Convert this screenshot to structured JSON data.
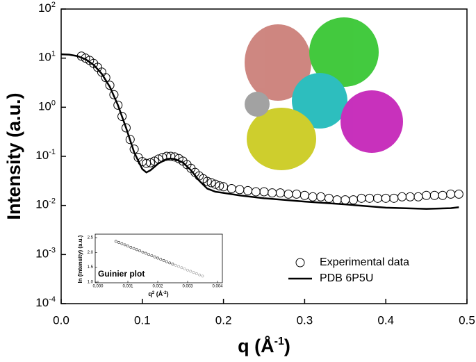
{
  "chart_data": [
    {
      "type": "line",
      "ylabel": "Intensity (a.u.)",
      "xlabel": {
        "text": "q (Å",
        "power": "-1",
        "end": ")"
      },
      "xlim": [
        0,
        0.5
      ],
      "xticks": [
        {
          "value": 0,
          "label": "0.0"
        },
        0.1,
        0.2,
        0.3,
        0.4,
        0.5
      ],
      "ylim": [
        0.0001,
        100
      ],
      "log_y": true,
      "yticks": [
        {
          "value": 0.0001,
          "label": "10",
          "power": "-4"
        },
        {
          "value": 0.001,
          "label": "10",
          "power": "-3"
        },
        {
          "value": 0.01,
          "label": "10",
          "power": "-2"
        },
        {
          "value": 0.1,
          "label": "10",
          "power": "-1"
        },
        {
          "value": 1,
          "label": "10",
          "power": "0"
        },
        {
          "value": 10,
          "label": "10",
          "power": "1"
        },
        {
          "value": 100,
          "label": "10",
          "power": "2"
        }
      ],
      "legend": "lower right",
      "series": [
        {
          "name": "Experimental data",
          "mode": "markers",
          "color": "#000000",
          "x": [
            0.025,
            0.03,
            0.035,
            0.04,
            0.045,
            0.05,
            0.055,
            0.06,
            0.065,
            0.07,
            0.075,
            0.08,
            0.085,
            0.09,
            0.095,
            0.1,
            0.105,
            0.11,
            0.115,
            0.12,
            0.125,
            0.13,
            0.135,
            0.14,
            0.145,
            0.15,
            0.155,
            0.16,
            0.165,
            0.17,
            0.175,
            0.18,
            0.185,
            0.19,
            0.195,
            0.2,
            0.21,
            0.22,
            0.23,
            0.24,
            0.25,
            0.26,
            0.27,
            0.28,
            0.29,
            0.3,
            0.31,
            0.32,
            0.33,
            0.34,
            0.35,
            0.36,
            0.37,
            0.38,
            0.39,
            0.4,
            0.41,
            0.42,
            0.43,
            0.44,
            0.45,
            0.46,
            0.47,
            0.48,
            0.49
          ],
          "values": [
            11,
            10,
            9,
            7.8,
            6.5,
            5.2,
            4,
            2.8,
            1.8,
            1.1,
            0.65,
            0.38,
            0.22,
            0.14,
            0.095,
            0.078,
            0.072,
            0.074,
            0.08,
            0.088,
            0.095,
            0.1,
            0.1,
            0.097,
            0.09,
            0.08,
            0.068,
            0.057,
            0.047,
            0.04,
            0.035,
            0.031,
            0.029,
            0.027,
            0.025,
            0.024,
            0.022,
            0.021,
            0.02,
            0.019,
            0.019,
            0.018,
            0.018,
            0.017,
            0.017,
            0.016,
            0.015,
            0.015,
            0.014,
            0.013,
            0.013,
            0.013,
            0.014,
            0.014,
            0.014,
            0.014,
            0.014,
            0.015,
            0.015,
            0.015,
            0.016,
            0.016,
            0.016,
            0.017,
            0.017
          ]
        },
        {
          "name": "PDB 6P5U",
          "mode": "lines",
          "color": "#000000",
          "x": [
            0,
            0.01,
            0.02,
            0.03,
            0.04,
            0.05,
            0.06,
            0.07,
            0.08,
            0.09,
            0.1,
            0.105,
            0.11,
            0.12,
            0.13,
            0.135,
            0.14,
            0.15,
            0.16,
            0.17,
            0.18,
            0.19,
            0.2,
            0.22,
            0.25,
            0.3,
            0.35,
            0.4,
            0.45,
            0.48,
            0.49
          ],
          "values": [
            12,
            11.8,
            11,
            9.5,
            7.3,
            4.8,
            2.6,
            1.1,
            0.38,
            0.12,
            0.055,
            0.047,
            0.052,
            0.072,
            0.088,
            0.09,
            0.088,
            0.075,
            0.052,
            0.032,
            0.022,
            0.019,
            0.018,
            0.016,
            0.014,
            0.012,
            0.0105,
            0.009,
            0.0085,
            0.0088,
            0.0092
          ]
        }
      ]
    },
    {
      "type": "scatter",
      "annotation": "Guinier plot",
      "ylabel": "ln (Intensity) (a.u.)",
      "xlabel": {
        "text": "q",
        "power": "2",
        "mid": " (Å",
        "power2": "-2",
        "end": ")"
      },
      "xlim": [
        0,
        0.004
      ],
      "xticks": [
        {
          "value": 0,
          "label": "0.000"
        },
        0.001,
        0.002,
        0.003,
        0.004
      ],
      "ylim": [
        1,
        2.5
      ],
      "yticks": [
        {
          "value": 1,
          "label": "1.0"
        },
        1.5,
        {
          "value": 2,
          "label": "2.0"
        },
        2.5
      ],
      "series": [
        {
          "color": "#222222",
          "x": [
            0.0006,
            0.0007,
            0.0008,
            0.0009,
            0.001,
            0.0011,
            0.0012,
            0.0013,
            0.0014,
            0.0015,
            0.0016,
            0.0017,
            0.0018,
            0.0019,
            0.002,
            0.0021,
            0.0022,
            0.0023,
            0.0024,
            0.0025
          ],
          "values": [
            2.377,
            2.337,
            2.296,
            2.256,
            2.215,
            2.175,
            2.134,
            2.094,
            2.053,
            2.013,
            1.972,
            1.932,
            1.891,
            1.851,
            1.81,
            1.77,
            1.729,
            1.689,
            1.648,
            1.608
          ]
        },
        {
          "color": "#999999",
          "x": [
            0.0026,
            0.0027,
            0.0028,
            0.0029,
            0.003,
            0.0031,
            0.0032,
            0.0033,
            0.0034,
            0.0035
          ],
          "values": [
            1.567,
            1.527,
            1.486,
            1.446,
            1.405,
            1.365,
            1.324,
            1.284,
            1.243,
            1.203
          ]
        }
      ]
    }
  ]
}
